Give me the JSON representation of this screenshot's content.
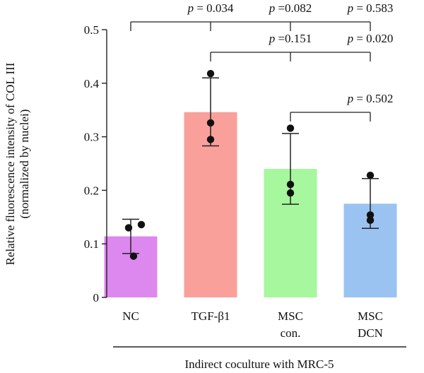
{
  "chart_data": {
    "type": "bar",
    "ylabel_lines": [
      "Relative fluorescence intensity of COL III",
      "(normalized by nuclei)"
    ],
    "xlabel": "Indirect coculture with MRC-5",
    "ylim": [
      0,
      0.5
    ],
    "yticks": [
      "0",
      "0.1",
      "0.2",
      "0.3",
      "0.4",
      "0.5"
    ],
    "grid": false,
    "categories": [
      {
        "lines": [
          "NC"
        ],
        "mean": 0.114,
        "sd_low": 0.082,
        "sd_high": 0.146,
        "points": [
          0.077,
          0.13,
          0.136
        ],
        "color": "#dd88ee"
      },
      {
        "lines": [
          "TGF-β1"
        ],
        "mean": 0.346,
        "sd_low": 0.283,
        "sd_high": 0.41,
        "points": [
          0.295,
          0.326,
          0.418
        ],
        "color": "#f9a09b"
      },
      {
        "lines": [
          "MSC",
          "con."
        ],
        "mean": 0.24,
        "sd_low": 0.174,
        "sd_high": 0.306,
        "points": [
          0.195,
          0.211,
          0.316
        ],
        "color": "#a6f79d"
      },
      {
        "lines": [
          "MSC",
          "DCN"
        ],
        "mean": 0.175,
        "sd_low": 0.129,
        "sd_high": 0.222,
        "points": [
          0.144,
          0.154,
          0.228
        ],
        "color": "#9ac3f2"
      }
    ],
    "comparisons": [
      {
        "from": 0,
        "to": 1,
        "text": "p = 0.034"
      },
      {
        "from": 0,
        "to": 2,
        "text": "p =0.082"
      },
      {
        "from": 0,
        "to": 3,
        "text": "p = 0.583"
      },
      {
        "from": 1,
        "to": 2,
        "text": "p =0.151"
      },
      {
        "from": 1,
        "to": 3,
        "text": "p = 0.020"
      },
      {
        "from": 2,
        "to": 3,
        "text": "p = 0.502"
      }
    ]
  }
}
